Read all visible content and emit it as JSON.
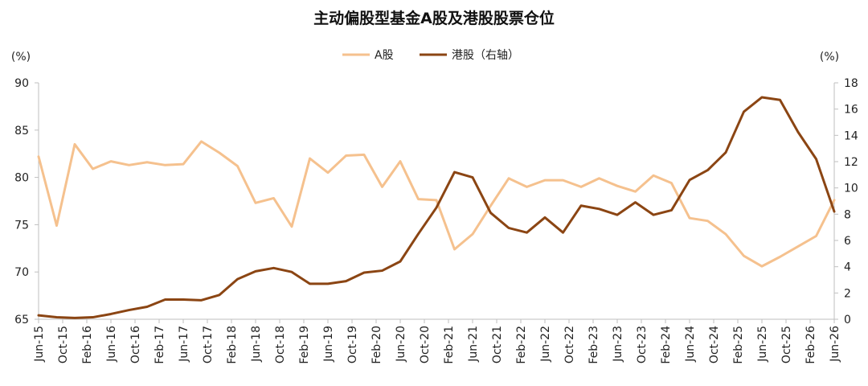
{
  "chart_data": {
    "type": "line",
    "title": "主动偏股型基金A股及港股股票仓位",
    "left_unit": "(%)",
    "right_unit": "(%)",
    "ylim_left": [
      65,
      90
    ],
    "ylim_right": [
      0,
      18
    ],
    "yticks_left": [
      "65",
      "70",
      "75",
      "80",
      "85",
      "90"
    ],
    "yticks_right": [
      "0",
      "2",
      "4",
      "6",
      "8",
      "10",
      "12",
      "14",
      "16",
      "18"
    ],
    "x": [
      "Jun-15",
      "Sep-15",
      "Dec-15",
      "Mar-16",
      "Jun-16",
      "Sep-16",
      "Dec-16",
      "Mar-17",
      "Jun-17",
      "Sep-17",
      "Dec-17",
      "Mar-18",
      "Jun-18",
      "Sep-18",
      "Dec-18",
      "Mar-19",
      "Jun-19",
      "Sep-19",
      "Dec-19",
      "Mar-20",
      "Jun-20",
      "Sep-20",
      "Dec-20",
      "Mar-21",
      "Jun-21",
      "Sep-21",
      "Dec-21",
      "Mar-22",
      "Jun-22",
      "Sep-22",
      "Dec-22",
      "Mar-23",
      "Jun-23",
      "Sep-23",
      "Dec-23",
      "Mar-24",
      "Jun-24",
      "Sep-24",
      "Dec-24",
      "Mar-25",
      "Jun-25",
      "Sep-25",
      "Dec-25",
      "Mar-26",
      "Jun-26"
    ],
    "xtick_labels": [
      "Jun-15",
      "Oct-15",
      "Feb-16",
      "Jun-16",
      "Oct-16",
      "Feb-17",
      "Jun-17",
      "Oct-17",
      "Feb-18",
      "Jun-18",
      "Oct-18",
      "Feb-19",
      "Jun-19",
      "Oct-19",
      "Feb-20",
      "Jun-20",
      "Oct-20",
      "Feb-21",
      "Jun-21",
      "Oct-21",
      "Feb-22",
      "Jun-22",
      "Oct-22",
      "Feb-23",
      "Jun-23",
      "Oct-23",
      "Feb-24",
      "Jun-24",
      "Oct-24",
      "Feb-25",
      "Jun-25",
      "Oct-25",
      "Feb-26",
      "Jun-26"
    ],
    "legend_position": "top-center",
    "series": [
      {
        "name": "A股",
        "axis": "left",
        "color": "#f5c18e",
        "values": [
          82.2,
          74.9,
          83.5,
          80.9,
          81.7,
          81.3,
          81.6,
          81.3,
          81.4,
          83.8,
          82.6,
          81.2,
          77.3,
          77.8,
          74.8,
          82.0,
          80.5,
          82.3,
          82.4,
          79.0,
          81.7,
          77.7,
          77.6,
          72.4,
          74.0,
          77.0,
          79.9,
          79.0,
          79.7,
          79.7,
          79.0,
          79.9,
          79.1,
          78.5,
          80.2,
          79.4,
          75.7,
          75.4,
          74.0,
          71.7,
          70.6,
          71.6,
          72.7,
          73.8,
          77.6
        ]
      },
      {
        "name": "港股（右轴）",
        "axis": "right",
        "color": "#8b4513",
        "values": [
          0.3,
          0.15,
          0.1,
          0.15,
          0.4,
          0.7,
          0.95,
          1.5,
          1.5,
          1.45,
          1.85,
          3.05,
          3.65,
          3.9,
          3.6,
          2.7,
          2.7,
          2.9,
          3.55,
          3.7,
          4.4,
          6.5,
          8.5,
          11.2,
          10.8,
          8.1,
          6.95,
          6.6,
          7.75,
          6.6,
          8.65,
          8.4,
          7.95,
          8.9,
          7.95,
          8.3,
          10.6,
          11.35,
          12.7,
          15.8,
          16.9,
          16.7,
          14.25,
          12.2,
          8.2
        ]
      }
    ]
  }
}
